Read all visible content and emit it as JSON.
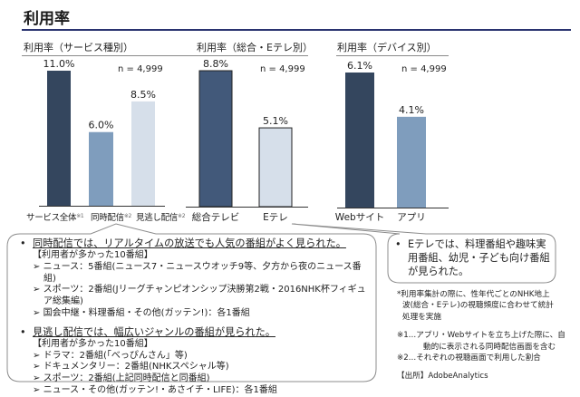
{
  "page_title": "利用率",
  "chart_data": [
    {
      "type": "bar",
      "title": "利用率（サービス種別）",
      "n_label": "n = 4,999",
      "categories": [
        "サービス全体",
        "同時配信",
        "見逃し配信"
      ],
      "category_notes": [
        "※1",
        "※2",
        "※2"
      ],
      "values": [
        11.0,
        6.0,
        8.5
      ],
      "value_labels": [
        "11.0%",
        "6.0%",
        "8.5%"
      ],
      "colors": [
        "#34465e",
        "#7f9dbd",
        "#d6dfea"
      ],
      "unit": "%",
      "ylim": [
        0,
        11.0
      ]
    },
    {
      "type": "bar",
      "title": "利用率（総合・Eテレ別）",
      "n_label": "n = 4,999",
      "categories": [
        "総合テレビ",
        "Eテレ"
      ],
      "category_notes": [
        "",
        ""
      ],
      "values": [
        8.8,
        5.1
      ],
      "value_labels": [
        "8.8%",
        "5.1%"
      ],
      "colors": [
        "#42597a",
        "#d6dfea"
      ],
      "unit": "%",
      "ylim": [
        0,
        8.8
      ]
    },
    {
      "type": "bar",
      "title": "利用率（デバイス別）",
      "n_label": "n = 4,999",
      "categories": [
        "Webサイト",
        "アプリ"
      ],
      "category_notes": [
        "",
        ""
      ],
      "values": [
        6.1,
        4.1
      ],
      "value_labels": [
        "6.1%",
        "4.1%"
      ],
      "colors": [
        "#34465e",
        "#7f9dbd"
      ],
      "unit": "%",
      "ylim": [
        0,
        6.1
      ]
    }
  ],
  "callout_left": {
    "bullet": "•",
    "section1": {
      "heading": "同時配信では、リアルタイムの放送でも人気の番組がよく見られた。",
      "subheading": "【利用者が多かった10番組】",
      "items": [
        "ニュース：5番組(ニュース7・ニュースウオッチ9等、夕方から夜のニュース番組)",
        "スポーツ：2番組(Jリーグチャンピオンシップ決勝第2戦・2016NHK杯フィギュア総集編)",
        "国会中継・料理番組・その他(ガッテン!)：各1番組"
      ]
    },
    "section2": {
      "heading": "見逃し配信では、幅広いジャンルの番組が見られた。",
      "subheading": "【利用者が多かった10番組】",
      "items": [
        "ドラマ：2番組(「べっぴんさん」等)",
        "ドキュメンタリー：2番組(NHKスペシャル等)",
        "スポーツ：2番組(上記同時配信と同番組)",
        "ニュース・その他(ガッテン!・あさイチ・LIFE)：各1番組"
      ]
    },
    "item_marker": "➢"
  },
  "callout_right": {
    "bullet": "•",
    "lines": [
      "Eテレでは、料理番組や趣味実",
      "用番組、幼児・子ども向け番組",
      "が見られた。"
    ]
  },
  "notes": {
    "asterisk": [
      "*利用率集計の際に、性年代ごとのNHK地上",
      "波(総合・Eテレ)の視聴頻度に合わせて統計",
      "処理を実施"
    ],
    "note1": [
      "※1…アプリ・Webサイトを立ち上げた際に、自",
      "動的に表示される同時配信画面を含む"
    ],
    "note2": "※2…それぞれの視聴画面で利用した割合",
    "source": "【出所】AdobeAnalytics"
  }
}
